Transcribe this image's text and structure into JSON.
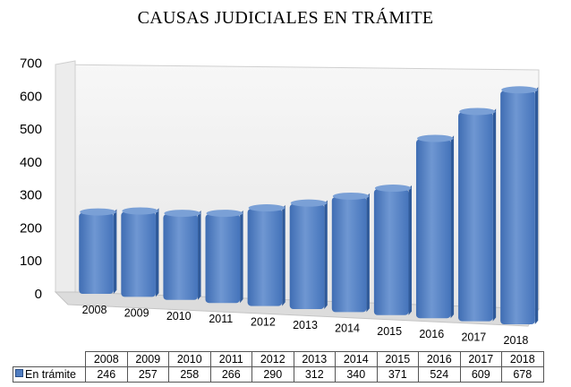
{
  "chart_data": {
    "type": "bar",
    "title": "CAUSAS JUDICIALES EN TRÁMITE",
    "categories": [
      "2008",
      "2009",
      "2010",
      "2011",
      "2012",
      "2013",
      "2014",
      "2015",
      "2016",
      "2017",
      "2018"
    ],
    "series": [
      {
        "name": "En trámite",
        "values": [
          246,
          257,
          258,
          266,
          290,
          312,
          340,
          371,
          524,
          609,
          678
        ]
      }
    ],
    "y_ticks": [
      "0",
      "100",
      "200",
      "300",
      "400",
      "500",
      "600",
      "700"
    ],
    "ylim": [
      0,
      700
    ],
    "grid": false,
    "legend": "data-table-bottom",
    "colors": {
      "bar": "#4f7cc0",
      "bar_top": "#7aa0d6",
      "bar_side": "#2f5a9a",
      "wall": "#f2f2f2",
      "floor": "#d9d9d9"
    }
  }
}
